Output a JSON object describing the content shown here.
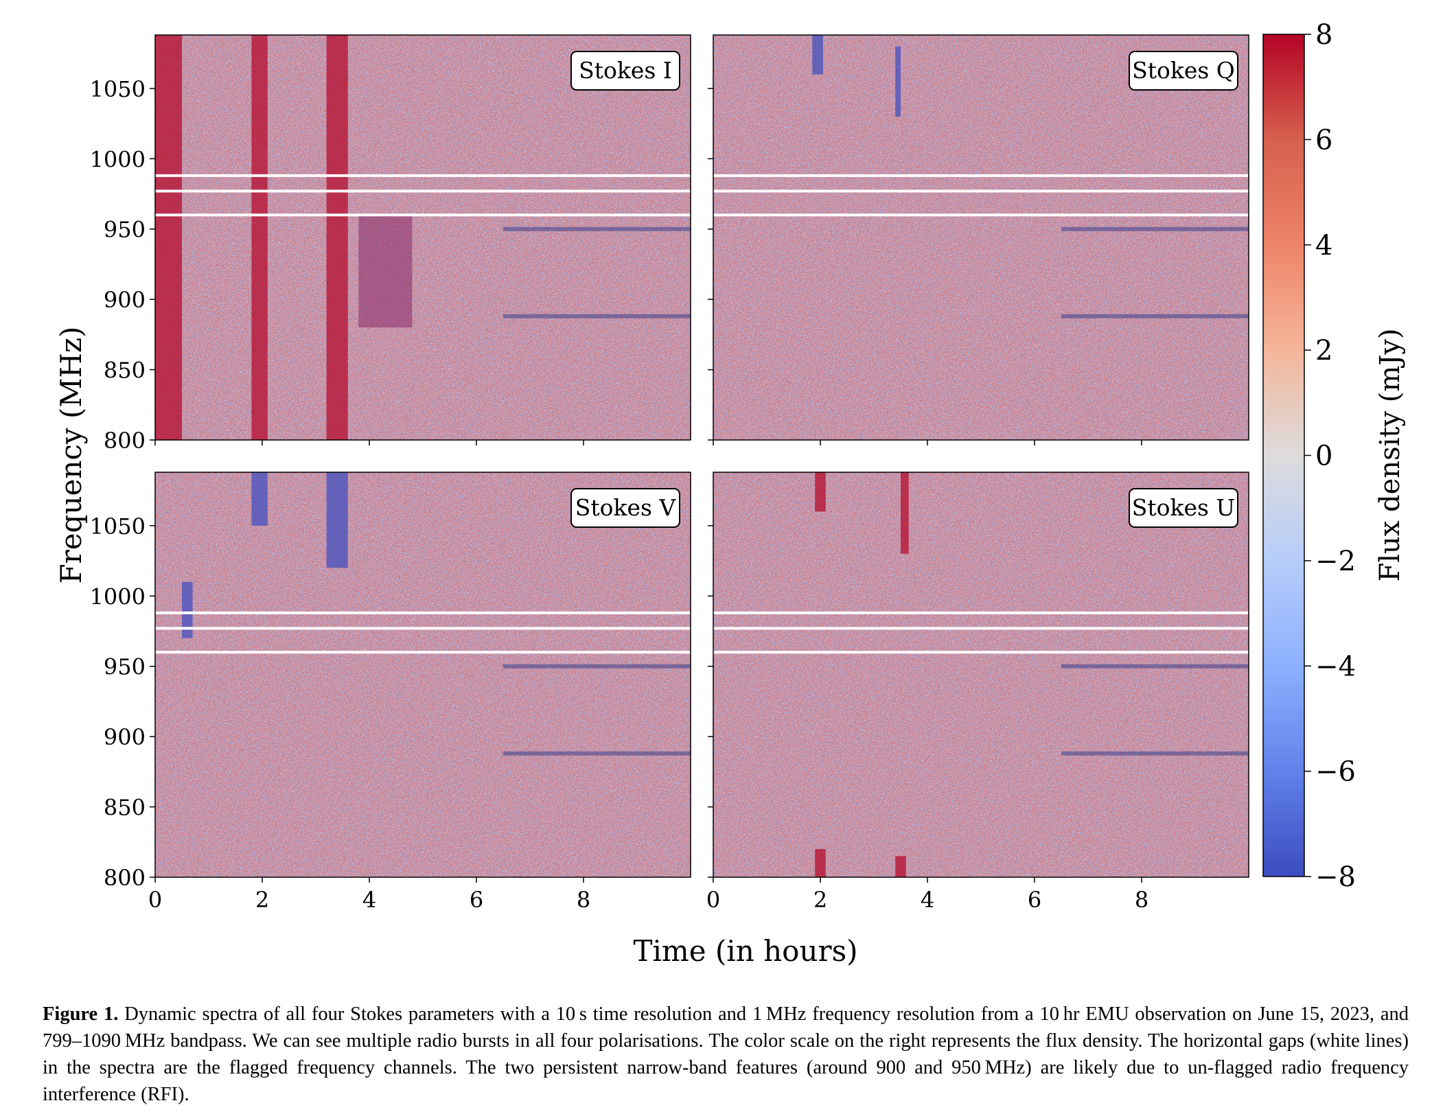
{
  "chart_data": [
    {
      "type": "heatmap",
      "panel_label": "Stokes I",
      "x": [
        0,
        2,
        4,
        6,
        8
      ],
      "y": [
        800,
        850,
        900,
        950,
        1000,
        1050
      ],
      "xlim": [
        0,
        10
      ],
      "ylim": [
        800,
        1088
      ],
      "flagged_channels_mhz": [
        960,
        977,
        988
      ],
      "persistent_rfi_mhz": [
        888,
        950
      ],
      "bursts": [
        {
          "t_start": 1.8,
          "t_end": 2.1,
          "f_low": 800,
          "f_high": 1088,
          "sign": "positive"
        },
        {
          "t_start": 3.2,
          "t_end": 3.6,
          "f_low": 800,
          "f_high": 1088,
          "sign": "positive"
        },
        {
          "t_start": 3.8,
          "t_end": 4.8,
          "f_low": 880,
          "f_high": 960,
          "sign": "mixed"
        },
        {
          "t_start": 0.0,
          "t_end": 0.5,
          "f_low": 800,
          "f_high": 1088,
          "sign": "positive"
        }
      ]
    },
    {
      "type": "heatmap",
      "panel_label": "Stokes Q",
      "x": [
        0,
        2,
        4,
        6,
        8
      ],
      "y": [
        800,
        850,
        900,
        950,
        1000,
        1050
      ],
      "xlim": [
        0,
        10
      ],
      "ylim": [
        800,
        1088
      ],
      "flagged_channels_mhz": [
        960,
        977,
        988
      ],
      "persistent_rfi_mhz": [
        888,
        950
      ],
      "bursts": [
        {
          "t_start": 1.85,
          "t_end": 2.05,
          "f_low": 1060,
          "f_high": 1088,
          "sign": "negative"
        },
        {
          "t_start": 3.4,
          "t_end": 3.5,
          "f_low": 1030,
          "f_high": 1080,
          "sign": "negative"
        }
      ]
    },
    {
      "type": "heatmap",
      "panel_label": "Stokes V",
      "x": [
        0,
        2,
        4,
        6,
        8
      ],
      "y": [
        800,
        850,
        900,
        950,
        1000,
        1050
      ],
      "xlim": [
        0,
        10
      ],
      "ylim": [
        800,
        1088
      ],
      "flagged_channels_mhz": [
        960,
        977,
        988
      ],
      "persistent_rfi_mhz": [
        888,
        950
      ],
      "bursts": [
        {
          "t_start": 1.8,
          "t_end": 2.1,
          "f_low": 1050,
          "f_high": 1088,
          "sign": "negative"
        },
        {
          "t_start": 3.2,
          "t_end": 3.6,
          "f_low": 1020,
          "f_high": 1088,
          "sign": "negative"
        },
        {
          "t_start": 0.5,
          "t_end": 0.7,
          "f_low": 970,
          "f_high": 1010,
          "sign": "negative"
        }
      ]
    },
    {
      "type": "heatmap",
      "panel_label": "Stokes U",
      "x": [
        0,
        2,
        4,
        6,
        8
      ],
      "y": [
        800,
        850,
        900,
        950,
        1000,
        1050
      ],
      "xlim": [
        0,
        10
      ],
      "ylim": [
        800,
        1088
      ],
      "flagged_channels_mhz": [
        960,
        977,
        988
      ],
      "persistent_rfi_mhz": [
        888,
        950
      ],
      "bursts": [
        {
          "t_start": 1.9,
          "t_end": 2.1,
          "f_low": 1060,
          "f_high": 1088,
          "sign": "positive"
        },
        {
          "t_start": 3.5,
          "t_end": 3.65,
          "f_low": 1030,
          "f_high": 1088,
          "sign": "positive"
        },
        {
          "t_start": 1.9,
          "t_end": 2.1,
          "f_low": 800,
          "f_high": 820,
          "sign": "positive"
        },
        {
          "t_start": 3.4,
          "t_end": 3.6,
          "f_low": 800,
          "f_high": 815,
          "sign": "positive"
        }
      ]
    }
  ],
  "axes": {
    "xlabel": "Time (in hours)",
    "ylabel": "Frequency (MHz)",
    "x_ticks": [
      "0",
      "2",
      "4",
      "6",
      "8"
    ],
    "y_ticks": [
      "800",
      "850",
      "900",
      "950",
      "1000",
      "1050"
    ]
  },
  "colorbar": {
    "label": "Flux density (mJy)",
    "range": [
      -8,
      8
    ],
    "ticks": [
      "8",
      "6",
      "4",
      "2",
      "0",
      "−2",
      "−4",
      "−6",
      "−8"
    ],
    "colormap": "coolwarm",
    "color_high": "#b40426",
    "color_mid": "#dddddd",
    "color_low": "#3b4cc0"
  },
  "caption": {
    "label": "Figure 1.",
    "text": "Dynamic spectra of all four Stokes parameters with a 10 s time resolution and 1 MHz frequency resolution from a 10 hr EMU observation on June 15, 2023, and 799–1090 MHz bandpass. We can see multiple radio bursts in all four polarisations. The color scale on the right represents the flux density. The horizontal gaps (white lines) in the spectra are the flagged frequency channels. The two persistent narrow-band features (around 900 and 950 MHz) are likely due to un-flagged radio frequency interference (RFI)."
  }
}
